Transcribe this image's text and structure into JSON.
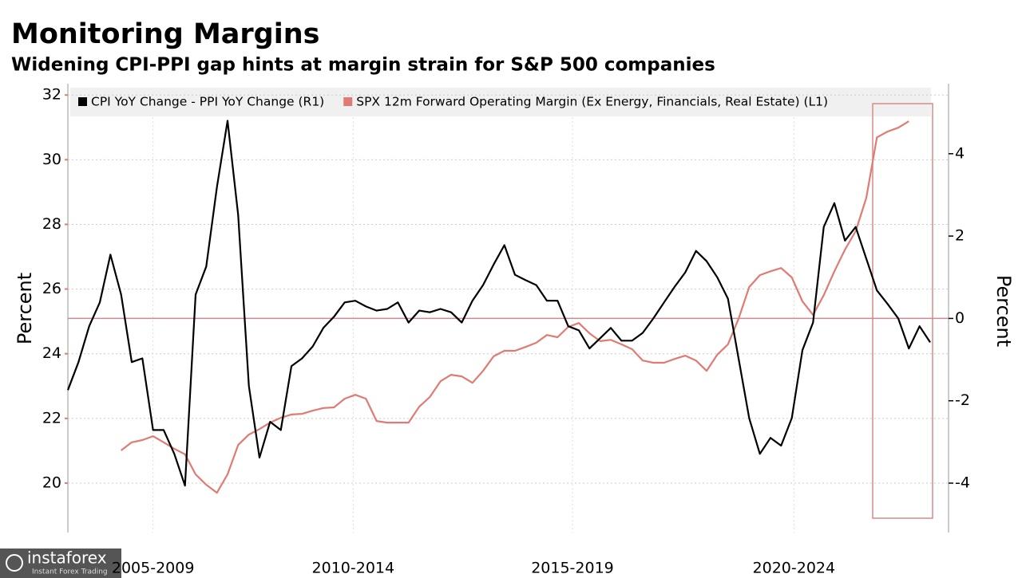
{
  "chart_data": {
    "type": "line",
    "title": "Monitoring Margins",
    "subtitle": "Widening CPI-PPI gap hints at margin strain for S&P 500 companies",
    "ylabel": "Percent",
    "y2label": "Percent",
    "x": [
      2005.5,
      2005.75,
      2006,
      2006.25,
      2006.5,
      2006.75,
      2007,
      2007.25,
      2007.5,
      2007.75,
      2008,
      2008.25,
      2008.5,
      2008.75,
      2009,
      2009.25,
      2009.5,
      2009.75,
      2010,
      2010.25,
      2010.5,
      2010.75,
      2011,
      2011.25,
      2011.5,
      2011.75,
      2012,
      2012.25,
      2012.5,
      2012.75,
      2013,
      2013.25,
      2013.5,
      2013.75,
      2014,
      2014.25,
      2014.5,
      2014.75,
      2015,
      2015.25,
      2015.5,
      2015.75,
      2016,
      2016.25,
      2016.5,
      2016.75,
      2017,
      2017.25,
      2017.5,
      2017.75,
      2018,
      2018.25,
      2018.5,
      2018.75,
      2019,
      2019.25,
      2019.5,
      2019.75,
      2020,
      2020.25,
      2020.5,
      2020.75,
      2021,
      2021.25,
      2021.5,
      2021.75,
      2022,
      2022.25,
      2022.5,
      2022.75,
      2023,
      2023.25,
      2023.5,
      2023.75,
      2024,
      2024.25,
      2024.5,
      2024.75,
      2025,
      2025.25,
      2025.5,
      2025.75
    ],
    "xlim": [
      2005.5,
      2025.75
    ],
    "xticks": [
      {
        "value": 2007.5,
        "label": "2005-2009"
      },
      {
        "value": 2012.2,
        "label": "2010-2014"
      },
      {
        "value": 2017.35,
        "label": "2015-2019"
      },
      {
        "value": 2022.55,
        "label": "2020-2024"
      }
    ],
    "ylim": [
      18.47,
      32.35
    ],
    "yticks": [
      20,
      22,
      24,
      26,
      28,
      30,
      32
    ],
    "y2lim": [
      -5.2,
      5.7
    ],
    "y2ticks": [
      -4,
      -2,
      0,
      2,
      4
    ],
    "y2_reference": 0,
    "grid": true,
    "series": [
      {
        "name": "CPI YoY Change - PPI YoY Change (R1)",
        "color": "#000000",
        "axis": "y2",
        "values": [
          -1.74,
          -1.06,
          -0.19,
          0.39,
          1.55,
          0.58,
          -1.06,
          -0.97,
          -2.71,
          -2.71,
          -3.29,
          -4.06,
          0.58,
          1.26,
          3.19,
          4.8,
          2.51,
          -1.64,
          -3.38,
          -2.51,
          -2.71,
          -1.16,
          -0.97,
          -0.68,
          -0.23,
          0.04,
          0.39,
          0.43,
          0.29,
          0.19,
          0.23,
          0.39,
          -0.1,
          0.19,
          0.15,
          0.23,
          0.15,
          -0.1,
          0.43,
          0.81,
          1.31,
          1.78,
          1.06,
          0.93,
          0.81,
          0.43,
          0.43,
          -0.19,
          -0.29,
          -0.73,
          -0.48,
          -0.23,
          -0.54,
          -0.54,
          -0.35,
          0,
          0.39,
          0.77,
          1.12,
          1.64,
          1.39,
          1.0,
          0.48,
          -0.97,
          -2.42,
          -3.29,
          -2.9,
          -3.09,
          -2.42,
          -0.77,
          -0.1,
          2.22,
          2.8,
          1.89,
          2.22,
          1.45,
          0.68,
          0.35,
          0,
          -0.73,
          -0.19,
          -0.58
        ]
      },
      {
        "name": "SPX 12m Forward Operating Margin (Ex Energy, Financials, Real Estate) (L1)",
        "color": "#e07b73",
        "axis": "y",
        "values": [
          null,
          null,
          null,
          null,
          null,
          21.01,
          21.26,
          21.33,
          21.45,
          21.26,
          21.06,
          20.89,
          20.27,
          19.95,
          19.7,
          20.27,
          21.18,
          21.5,
          21.67,
          21.87,
          22.02,
          22.12,
          22.14,
          22.24,
          22.32,
          22.34,
          22.61,
          22.73,
          22.61,
          21.92,
          21.87,
          21.87,
          21.87,
          22.36,
          22.66,
          23.15,
          23.35,
          23.3,
          23.1,
          23.47,
          23.92,
          24.09,
          24.09,
          24.21,
          24.34,
          24.58,
          24.51,
          24.83,
          24.95,
          24.63,
          24.39,
          24.43,
          24.29,
          24.14,
          23.79,
          23.72,
          23.72,
          23.84,
          23.94,
          23.79,
          23.47,
          23.97,
          24.29,
          25.08,
          26.06,
          26.43,
          26.55,
          26.65,
          26.36,
          25.62,
          25.2,
          25.81,
          26.55,
          27.22,
          27.79,
          28.82,
          30.69,
          30.87,
          30.99,
          31.19,
          null,
          null
        ]
      }
    ]
  },
  "watermark": {
    "name": "instaforex",
    "tagline": "Instant Forex Trading"
  }
}
